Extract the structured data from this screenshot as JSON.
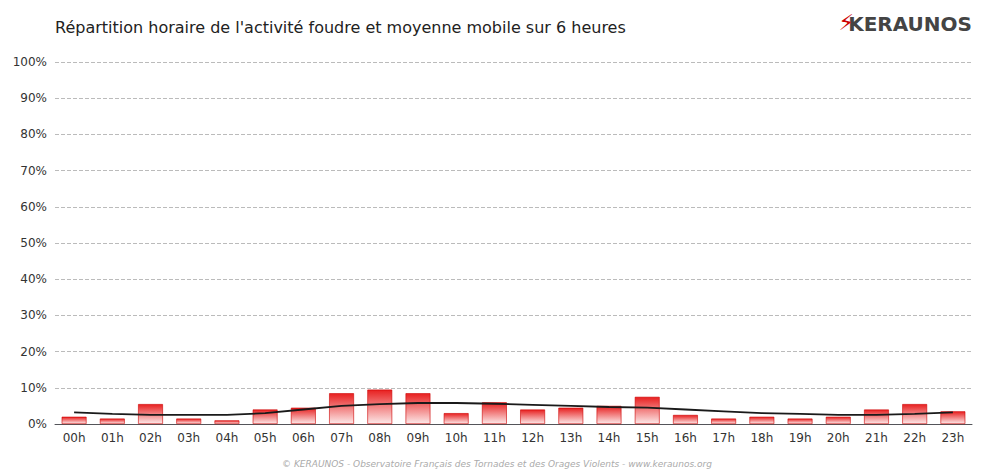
{
  "chart_data": {
    "type": "bar",
    "title": "Répartition horaire de l'activité foudre et moyenne mobile sur 6 heures",
    "categories": [
      "00h",
      "01h",
      "02h",
      "03h",
      "04h",
      "05h",
      "06h",
      "07h",
      "08h",
      "09h",
      "10h",
      "11h",
      "12h",
      "13h",
      "14h",
      "15h",
      "16h",
      "17h",
      "18h",
      "19h",
      "20h",
      "21h",
      "22h",
      "23h"
    ],
    "series": [
      {
        "type": "bar",
        "color": "#e82020",
        "values": [
          2.0,
          1.5,
          5.5,
          1.5,
          1.0,
          4.0,
          4.5,
          8.5,
          9.5,
          8.5,
          3.0,
          6.0,
          4.0,
          4.5,
          5.0,
          7.5,
          2.5,
          1.5,
          2.0,
          1.5,
          2.0,
          4.0,
          5.5,
          3.5
        ]
      },
      {
        "type": "line",
        "color": "#1a1a1a",
        "values": [
          3.2,
          2.8,
          2.5,
          2.5,
          2.5,
          3.0,
          4.0,
          5.0,
          5.5,
          5.8,
          5.8,
          5.6,
          5.3,
          5.0,
          4.7,
          4.5,
          4.0,
          3.5,
          3.0,
          2.8,
          2.5,
          2.5,
          2.8,
          3.2
        ]
      }
    ],
    "ylim": [
      0,
      100
    ],
    "yticks": [
      {
        "value": 0,
        "label": "0%"
      },
      {
        "value": 10,
        "label": "10%"
      },
      {
        "value": 20,
        "label": "20%"
      },
      {
        "value": 30,
        "label": "30%"
      },
      {
        "value": 40,
        "label": "40%"
      },
      {
        "value": 50,
        "label": "50%"
      },
      {
        "value": 60,
        "label": "60%"
      },
      {
        "value": 70,
        "label": "70%"
      },
      {
        "value": 80,
        "label": "80%"
      },
      {
        "value": 90,
        "label": "90%"
      },
      {
        "value": 100,
        "label": "100%"
      }
    ],
    "grid": true,
    "annotations": [
      "⚡",
      "KERAUNOS",
      "© KERAUNOS - Observatoire Français des Tornades et des Orages Violents - www.keraunos.org"
    ]
  }
}
